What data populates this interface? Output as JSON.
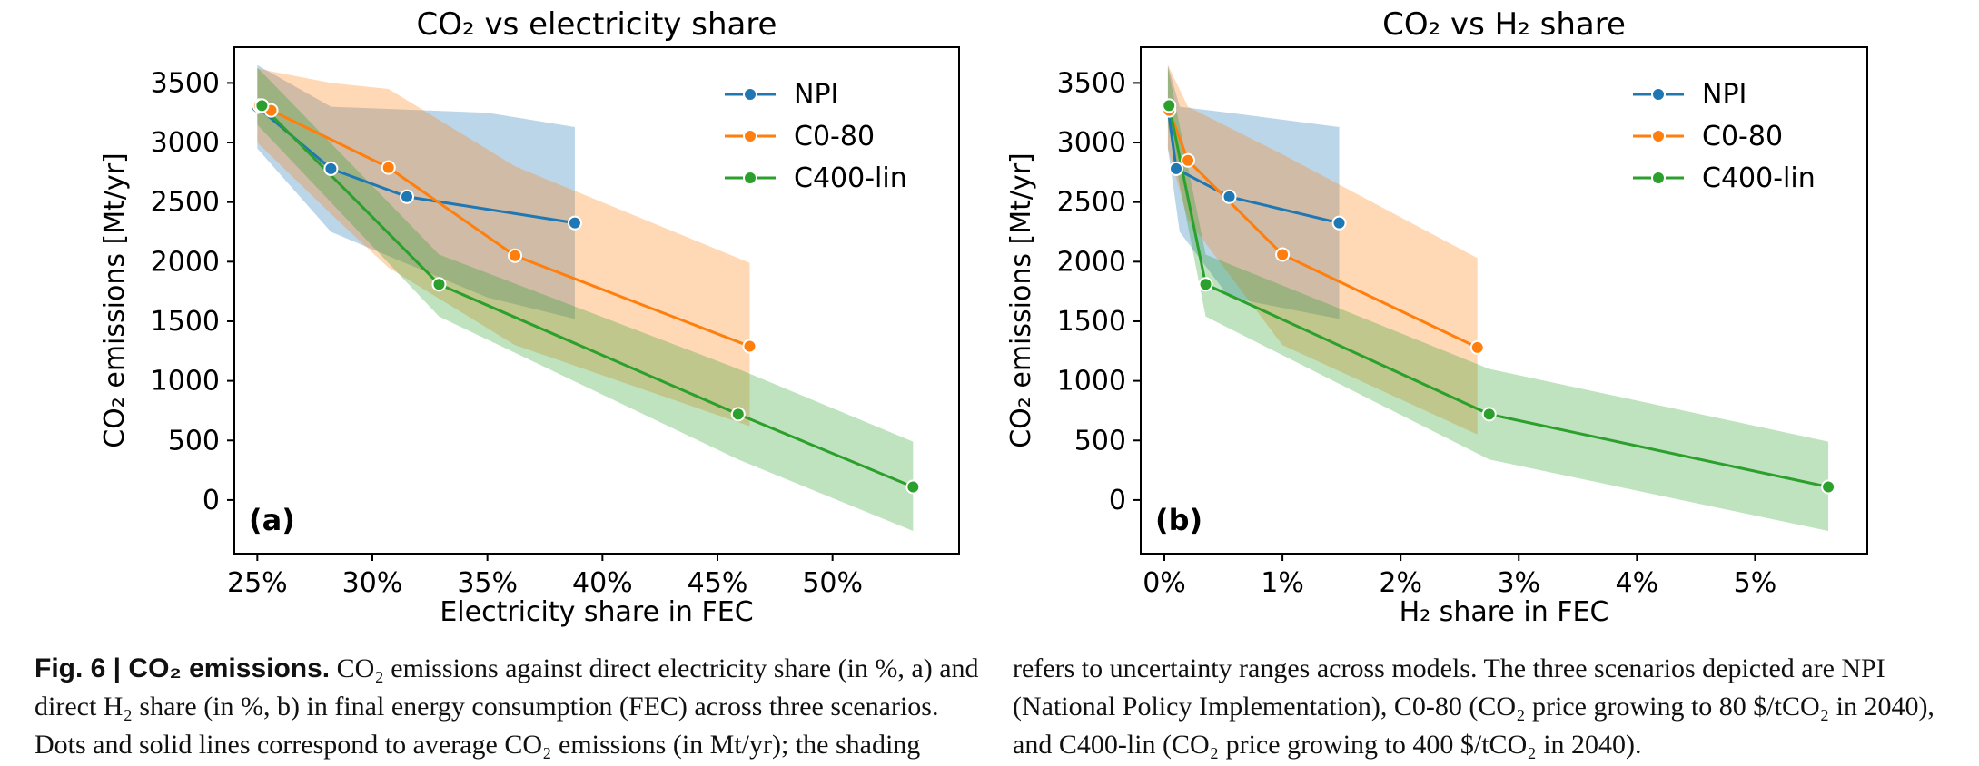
{
  "chart_data": [
    {
      "type": "line",
      "panel_label": "(a)",
      "title": "CO₂ vs electricity share",
      "xlabel": "Electricity share in FEC",
      "ylabel": "CO₂ emissions [Mt/yr]",
      "xlim": [
        0.24,
        0.555
      ],
      "ylim": [
        -450,
        3800
      ],
      "xticks": [
        0.25,
        0.3,
        0.35,
        0.4,
        0.45,
        0.5
      ],
      "xtick_labels": [
        "25%",
        "30%",
        "35%",
        "40%",
        "45%",
        "50%"
      ],
      "yticks": [
        0,
        500,
        1000,
        1500,
        2000,
        2500,
        3000,
        3500
      ],
      "ytick_labels": [
        "0",
        "500",
        "1000",
        "1500",
        "2000",
        "2500",
        "3000",
        "3500"
      ],
      "legend_position": "top-right",
      "grid": false,
      "series": [
        {
          "name": "NPI",
          "color": "#1f77b4",
          "x": [
            0.25,
            0.282,
            0.315,
            0.388
          ],
          "y": [
            3300,
            2780,
            2545,
            2325
          ],
          "band": {
            "x": [
              0.25,
              0.282,
              0.35,
              0.388
            ],
            "lo": [
              2950,
              2250,
              1700,
              1520
            ],
            "hi": [
              3650,
              3300,
              3250,
              3130
            ]
          }
        },
        {
          "name": "C0-80",
          "color": "#ff7f0e",
          "x": [
            0.251,
            0.256,
            0.307,
            0.362,
            0.464
          ],
          "y": [
            3310,
            3270,
            2790,
            2050,
            1290
          ],
          "band": {
            "x": [
              0.25,
              0.282,
              0.307,
              0.362,
              0.464
            ],
            "lo": [
              3000,
              2400,
              1950,
              1300,
              620
            ],
            "hi": [
              3620,
              3500,
              3450,
              2800,
              1990
            ]
          }
        },
        {
          "name": "C400-lin",
          "color": "#2ca02c",
          "x": [
            0.252,
            0.329,
            0.459,
            0.535
          ],
          "y": [
            3310,
            1810,
            720,
            110
          ],
          "band": {
            "x": [
              0.25,
              0.329,
              0.459,
              0.535
            ],
            "lo": [
              3150,
              1540,
              340,
              -260
            ],
            "hi": [
              3630,
              2060,
              1100,
              490
            ]
          }
        }
      ]
    },
    {
      "type": "line",
      "panel_label": "(b)",
      "title": "CO₂ vs H₂ share",
      "xlabel": "H₂ share in FEC",
      "ylabel": "CO₂ emissions [Mt/yr]",
      "xlim": [
        -0.002,
        0.0595
      ],
      "ylim": [
        -450,
        3800
      ],
      "xticks": [
        0,
        0.01,
        0.02,
        0.03,
        0.04,
        0.05
      ],
      "xtick_labels": [
        "0%",
        "1%",
        "2%",
        "3%",
        "4%",
        "5%"
      ],
      "yticks": [
        0,
        500,
        1000,
        1500,
        2000,
        2500,
        3000,
        3500
      ],
      "ytick_labels": [
        "0",
        "500",
        "1000",
        "1500",
        "2000",
        "2500",
        "3000",
        "3500"
      ],
      "legend_position": "top-right",
      "grid": false,
      "series": [
        {
          "name": "NPI",
          "color": "#1f77b4",
          "x": [
            0.0003,
            0.001,
            0.0055,
            0.0148
          ],
          "y": [
            3300,
            2780,
            2545,
            2325
          ],
          "band": {
            "x": [
              0.0003,
              0.0013,
              0.0055,
              0.0148
            ],
            "lo": [
              2950,
              2250,
              1700,
              1520
            ],
            "hi": [
              3650,
              3300,
              3250,
              3130
            ]
          }
        },
        {
          "name": "C0-80",
          "color": "#ff7f0e",
          "x": [
            0.0004,
            0.002,
            0.01,
            0.0265
          ],
          "y": [
            3270,
            2850,
            2060,
            1280
          ],
          "band": {
            "x": [
              0.0003,
              0.002,
              0.01,
              0.0265
            ],
            "lo": [
              2950,
              2350,
              1300,
              550
            ],
            "hi": [
              3650,
              3300,
              2900,
              2030
            ]
          }
        },
        {
          "name": "C400-lin",
          "color": "#2ca02c",
          "x": [
            0.0004,
            0.0035,
            0.0275,
            0.0562
          ],
          "y": [
            3310,
            1810,
            720,
            110
          ],
          "band": {
            "x": [
              0.0003,
              0.0035,
              0.0275,
              0.0562
            ],
            "lo": [
              3150,
              1540,
              340,
              -260
            ],
            "hi": [
              3630,
              2060,
              1100,
              490
            ]
          }
        }
      ]
    }
  ],
  "caption": {
    "label": "Fig. 6 | CO₂ emissions.",
    "left_text": "CO₂ emissions against direct electricity share (in %, a) and direct H₂ share (in %, b) in final energy consumption (FEC) across three scenarios. Dots and solid lines correspond to average CO₂ emissions (in Mt/yr); the shading",
    "right_text": "refers to uncertainty ranges across models. The three scenarios depicted are NPI (National Policy Implementation), C0-80 (CO₂ price growing to 80 $/tCO₂ in 2040), and C400-lin (CO₂ price growing to 400 $/tCO₂ in 2040)."
  }
}
